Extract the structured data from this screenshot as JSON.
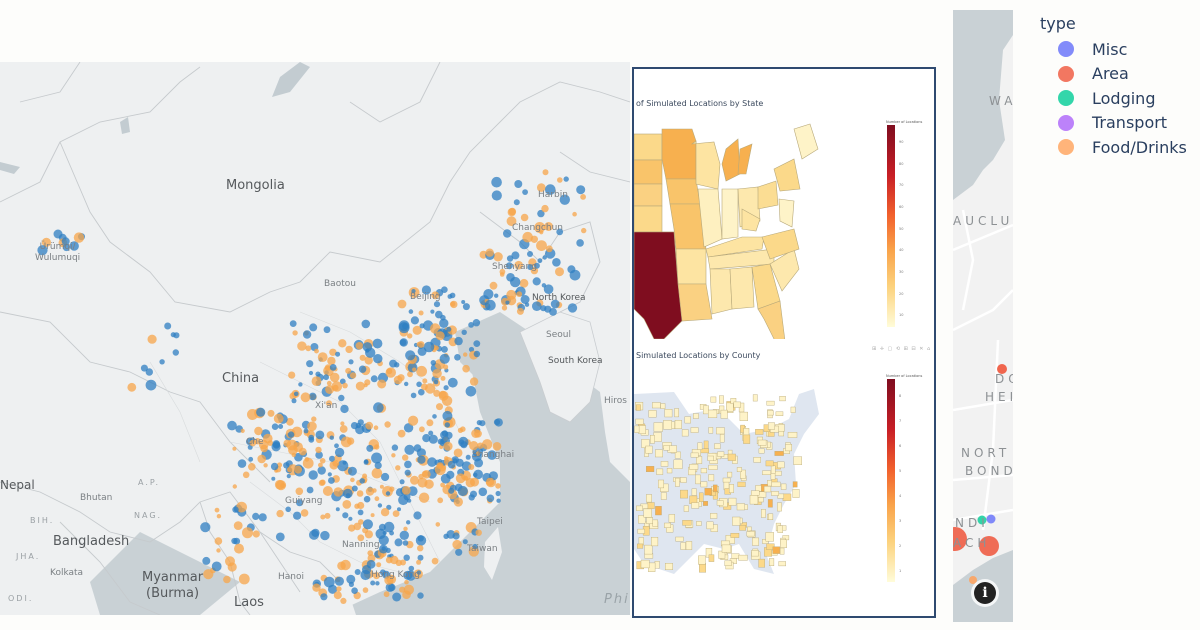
{
  "china_map": {
    "labels": {
      "mongolia": "Mongolia",
      "china": "China",
      "urumqi": "Ürümqi/\nWulumuqi",
      "harbin": "Harbin",
      "changchun": "Changchun",
      "shenyang": "Shenyang",
      "baotou": "Baotou",
      "beijing": "Beijing",
      "north_korea": "North Korea",
      "seoul": "Seoul",
      "south_korea": "South Korea",
      "hiroshima": "Hiros",
      "xian": "Xi'an",
      "chengdu": "Che",
      "guiyang": "Guiyang",
      "nanning": "Nanning",
      "shanghai": "Shanghai",
      "taipei": "Taipei",
      "taiwan": "Taiwan",
      "hong_kong": "Hong Kong",
      "hanoi": "Hanoi",
      "laos": "Laos",
      "myanmar": "Myanmar\n(Burma)",
      "bangladesh": "Bangladesh",
      "kolkata": "Kolkata",
      "bhutan": "Bhutan",
      "nepal": "Nepal",
      "bih": "BIH.",
      "jha": "JHA.",
      "odi": "ODI.",
      "ap": "A.P.",
      "nag": "NAG.",
      "philippine_sea": "Phi"
    },
    "series_colors": {
      "blue": "#2f7fc1",
      "orange": "#f7a54a"
    }
  },
  "choropleth": {
    "state_chart": {
      "title": "of Simulated Locations by State",
      "colorbar_title": "Number of Locations",
      "colorbar_ticks": [
        "90",
        "80",
        "70",
        "60",
        "50",
        "40",
        "30",
        "20",
        "10"
      ]
    },
    "county_chart": {
      "title": "Simulated Locations by County",
      "colorbar_title": "Number of Locations",
      "colorbar_ticks": [
        "8",
        "7",
        "6",
        "5",
        "4",
        "3",
        "2",
        "1"
      ],
      "modebar": "⊞ ✛ ▢ ⟲ ⊞ ⊟ ✕ ⌂"
    }
  },
  "sydney_map": {
    "labels": {
      "wa": "WA",
      "auclu": "AUCLU",
      "do": "DO",
      "hei": "HEI",
      "nort": "NORT",
      "bond": "BOND",
      "ndi": "NDI",
      "ach": "ACH"
    },
    "info_icon": "i"
  },
  "legend": {
    "title": "type",
    "items": [
      {
        "label": "Misc",
        "color": "#636efa"
      },
      {
        "label": "Area",
        "color": "#ef553b"
      },
      {
        "label": "Lodging",
        "color": "#00cc96"
      },
      {
        "label": "Transport",
        "color": "#ab63fa"
      },
      {
        "label": "Food/Drinks",
        "color": "#ffa15a"
      }
    ]
  }
}
